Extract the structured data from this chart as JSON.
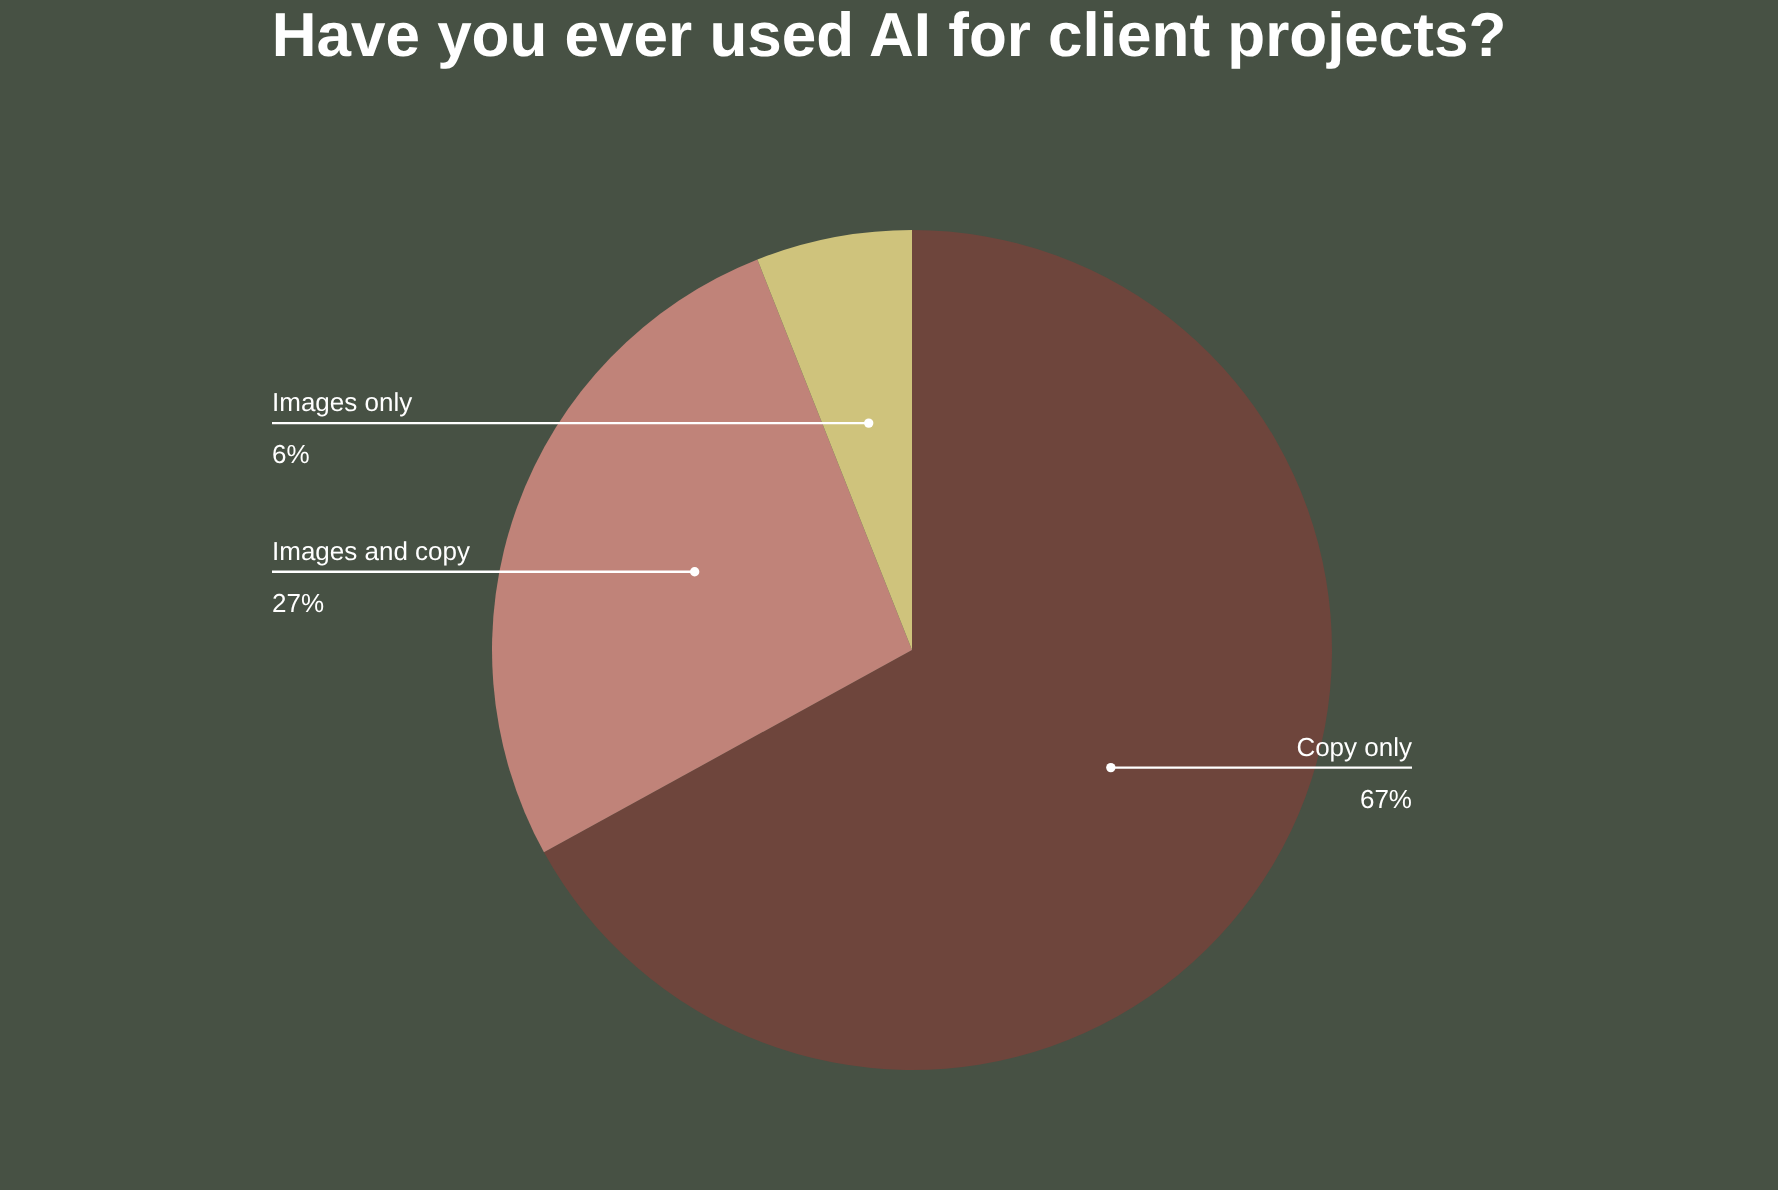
{
  "chart_data": {
    "type": "pie",
    "title": "Have you ever used AI for client projects?",
    "categories": [
      "Copy only",
      "Images and copy",
      "Images only"
    ],
    "values": [
      67,
      27,
      6
    ],
    "colors": [
      "#6e453c",
      "#c08379",
      "#cfc37c"
    ],
    "value_labels": [
      "67%",
      "27%",
      "6%"
    ],
    "legend": false
  }
}
